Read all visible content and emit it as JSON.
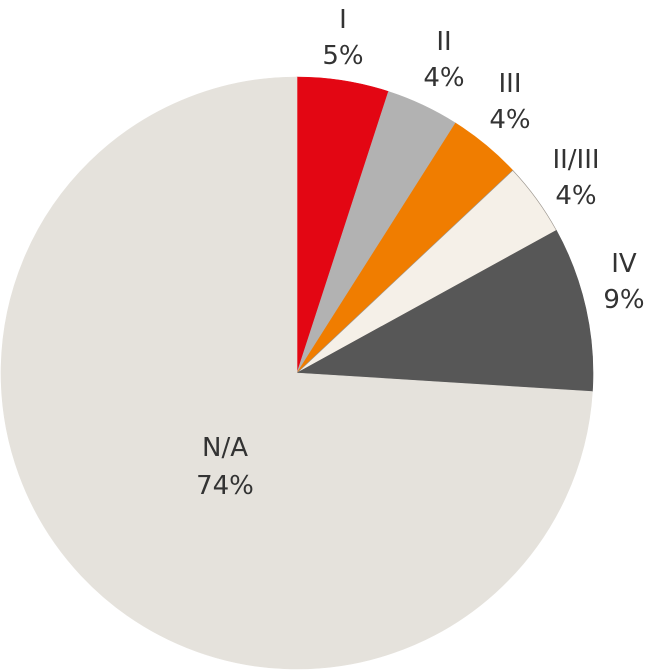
{
  "chart_data": {
    "type": "pie",
    "title": "",
    "start_angle_deg": 0,
    "direction": "clockwise",
    "slices": [
      {
        "label": "I",
        "percent_label": "5%",
        "value": 5,
        "color": "#e30613",
        "stroke": "#e30613"
      },
      {
        "label": "II",
        "percent_label": "4%",
        "value": 4,
        "color": "#b2b2b2",
        "stroke": "#b2b2b2"
      },
      {
        "label": "III",
        "percent_label": "4%",
        "value": 4,
        "color": "#f07d00",
        "stroke": "#f07d00"
      },
      {
        "label": "II/III",
        "percent_label": "4%",
        "value": 4,
        "color": "#f5f0e8",
        "stroke": "#9a948c"
      },
      {
        "label": "IV",
        "percent_label": "9%",
        "value": 9,
        "color": "#575757",
        "stroke": "#575757"
      },
      {
        "label": "N/A",
        "percent_label": "74%",
        "value": 74,
        "color": "#e5e2dc",
        "stroke": "#e5e2dc"
      }
    ]
  }
}
